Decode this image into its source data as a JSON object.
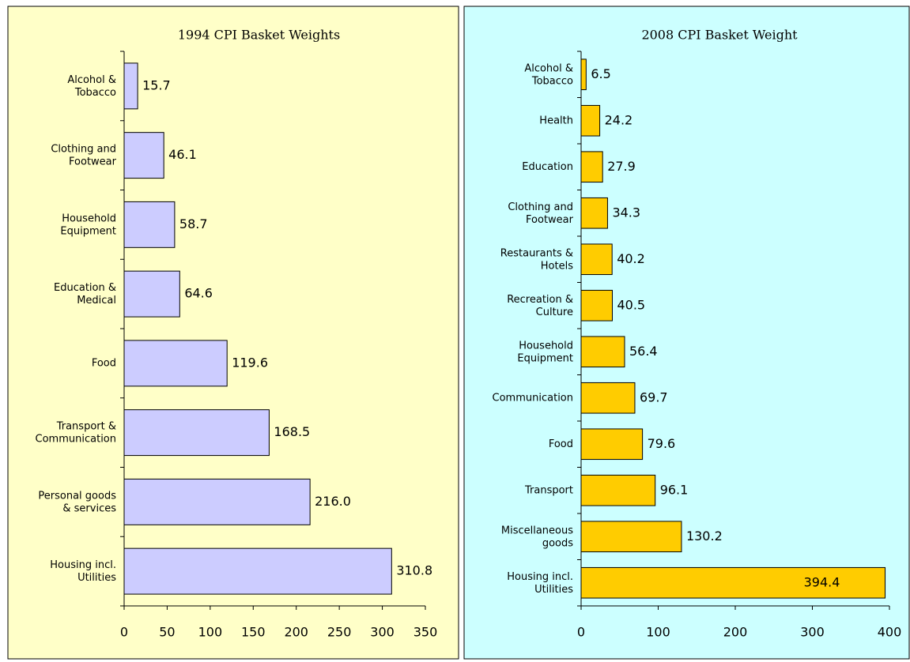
{
  "chart_data": [
    {
      "type": "barh",
      "title": "1994 CPI Basket Weights",
      "categories": [
        "Alcohol &\nTobacco",
        "Clothing and\nFootwear",
        "Household\nEquipment",
        "Education &\nMedical",
        "Food",
        "Transport &\nCommunication",
        "Personal goods\n& services",
        "Housing incl.\nUtilities"
      ],
      "values": [
        15.7,
        46.1,
        58.7,
        64.6,
        119.6,
        168.5,
        216,
        310.8
      ],
      "value_labels": [
        "15.7",
        "46.1",
        "58.7",
        "64.6",
        "119.6",
        "168.5",
        "216.0",
        "310.8"
      ],
      "color": "#ccccff",
      "background": "#ffffc8",
      "xlim": [
        0,
        350
      ],
      "xticks": [
        0,
        50,
        100,
        150,
        200,
        250,
        300,
        350
      ],
      "grid": false
    },
    {
      "type": "barh",
      "title": "2008 CPI Basket Weight",
      "categories": [
        "Alcohol &\nTobacco",
        "Health",
        "Education",
        "Clothing and\nFootwear",
        "Restaurants &\nHotels",
        "Recreation &\nCulture",
        "Household\nEquipment",
        "Communication",
        "Food",
        "Transport",
        "Miscellaneous\ngoods",
        "Housing incl.\nUtilities"
      ],
      "values": [
        6.5,
        24.2,
        27.9,
        34.3,
        40.2,
        40.5,
        56.4,
        69.7,
        79.6,
        96.1,
        130.2,
        394.4
      ],
      "value_labels": [
        "6.5",
        "24.2",
        "27.9",
        "34.3",
        "40.2",
        "40.5",
        "56.4",
        "69.7",
        "79.6",
        "96.1",
        "130.2",
        "394.4"
      ],
      "color": "#ffcc00",
      "background": "#ccffff",
      "xlim": [
        0,
        400
      ],
      "xticks": [
        0,
        100,
        200,
        300,
        400
      ],
      "grid": false
    }
  ]
}
